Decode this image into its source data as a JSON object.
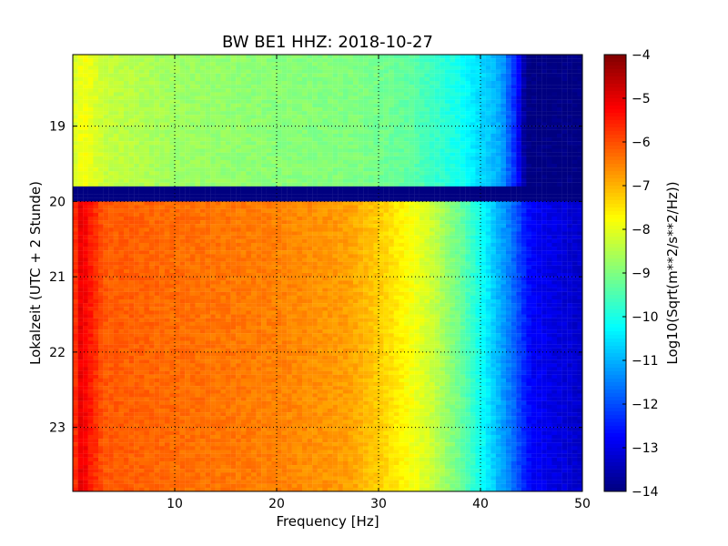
{
  "chart_data": {
    "type": "heatmap",
    "title": "BW BE1 HHZ: 2018-10-27",
    "xlabel": "Frequency [Hz]",
    "ylabel": "Lokalzeit (UTC + 2 Stunde)",
    "xlim": [
      0,
      50
    ],
    "ylim": [
      23.85,
      18.05
    ],
    "x_ticks": [
      10,
      20,
      30,
      40,
      50
    ],
    "y_ticks": [
      19,
      20,
      21,
      22,
      23
    ],
    "grid": true,
    "colorbar": {
      "label": "Log10(Sqrt(m**2/s**2/Hz))",
      "min": -14,
      "max": -4,
      "ticks": [
        -4,
        -5,
        -6,
        -7,
        -8,
        -9,
        -10,
        -11,
        -12,
        -13,
        -14
      ],
      "colormap": "jet"
    },
    "spectral_profile": {
      "segment_before_gap": {
        "time_range": [
          18.05,
          19.8
        ],
        "frequency_hz": [
          0,
          1,
          3,
          10,
          20,
          28,
          33,
          38,
          42,
          43.5,
          44.5,
          50
        ],
        "log10_amplitude": [
          -8.2,
          -7.8,
          -8.3,
          -8.7,
          -8.9,
          -9.0,
          -9.3,
          -10.1,
          -11.1,
          -12.5,
          -14,
          -14
        ]
      },
      "gap": {
        "time_range": [
          19.82,
          20.02
        ],
        "log10_amplitude": -14
      },
      "segment_after_gap": {
        "time_range": [
          20.02,
          23.85
        ],
        "frequency_hz": [
          0,
          0.8,
          3,
          10,
          20,
          27,
          31,
          35,
          38,
          40,
          43,
          45,
          50
        ],
        "log10_amplitude": [
          -6.0,
          -5.0,
          -6.1,
          -6.3,
          -6.5,
          -6.8,
          -7.4,
          -8.2,
          -9.2,
          -10.1,
          -11.6,
          -12.8,
          -13.3
        ]
      }
    },
    "colors": {
      "axis": "#000000",
      "grid": "#000000",
      "background": "#ffffff"
    }
  }
}
